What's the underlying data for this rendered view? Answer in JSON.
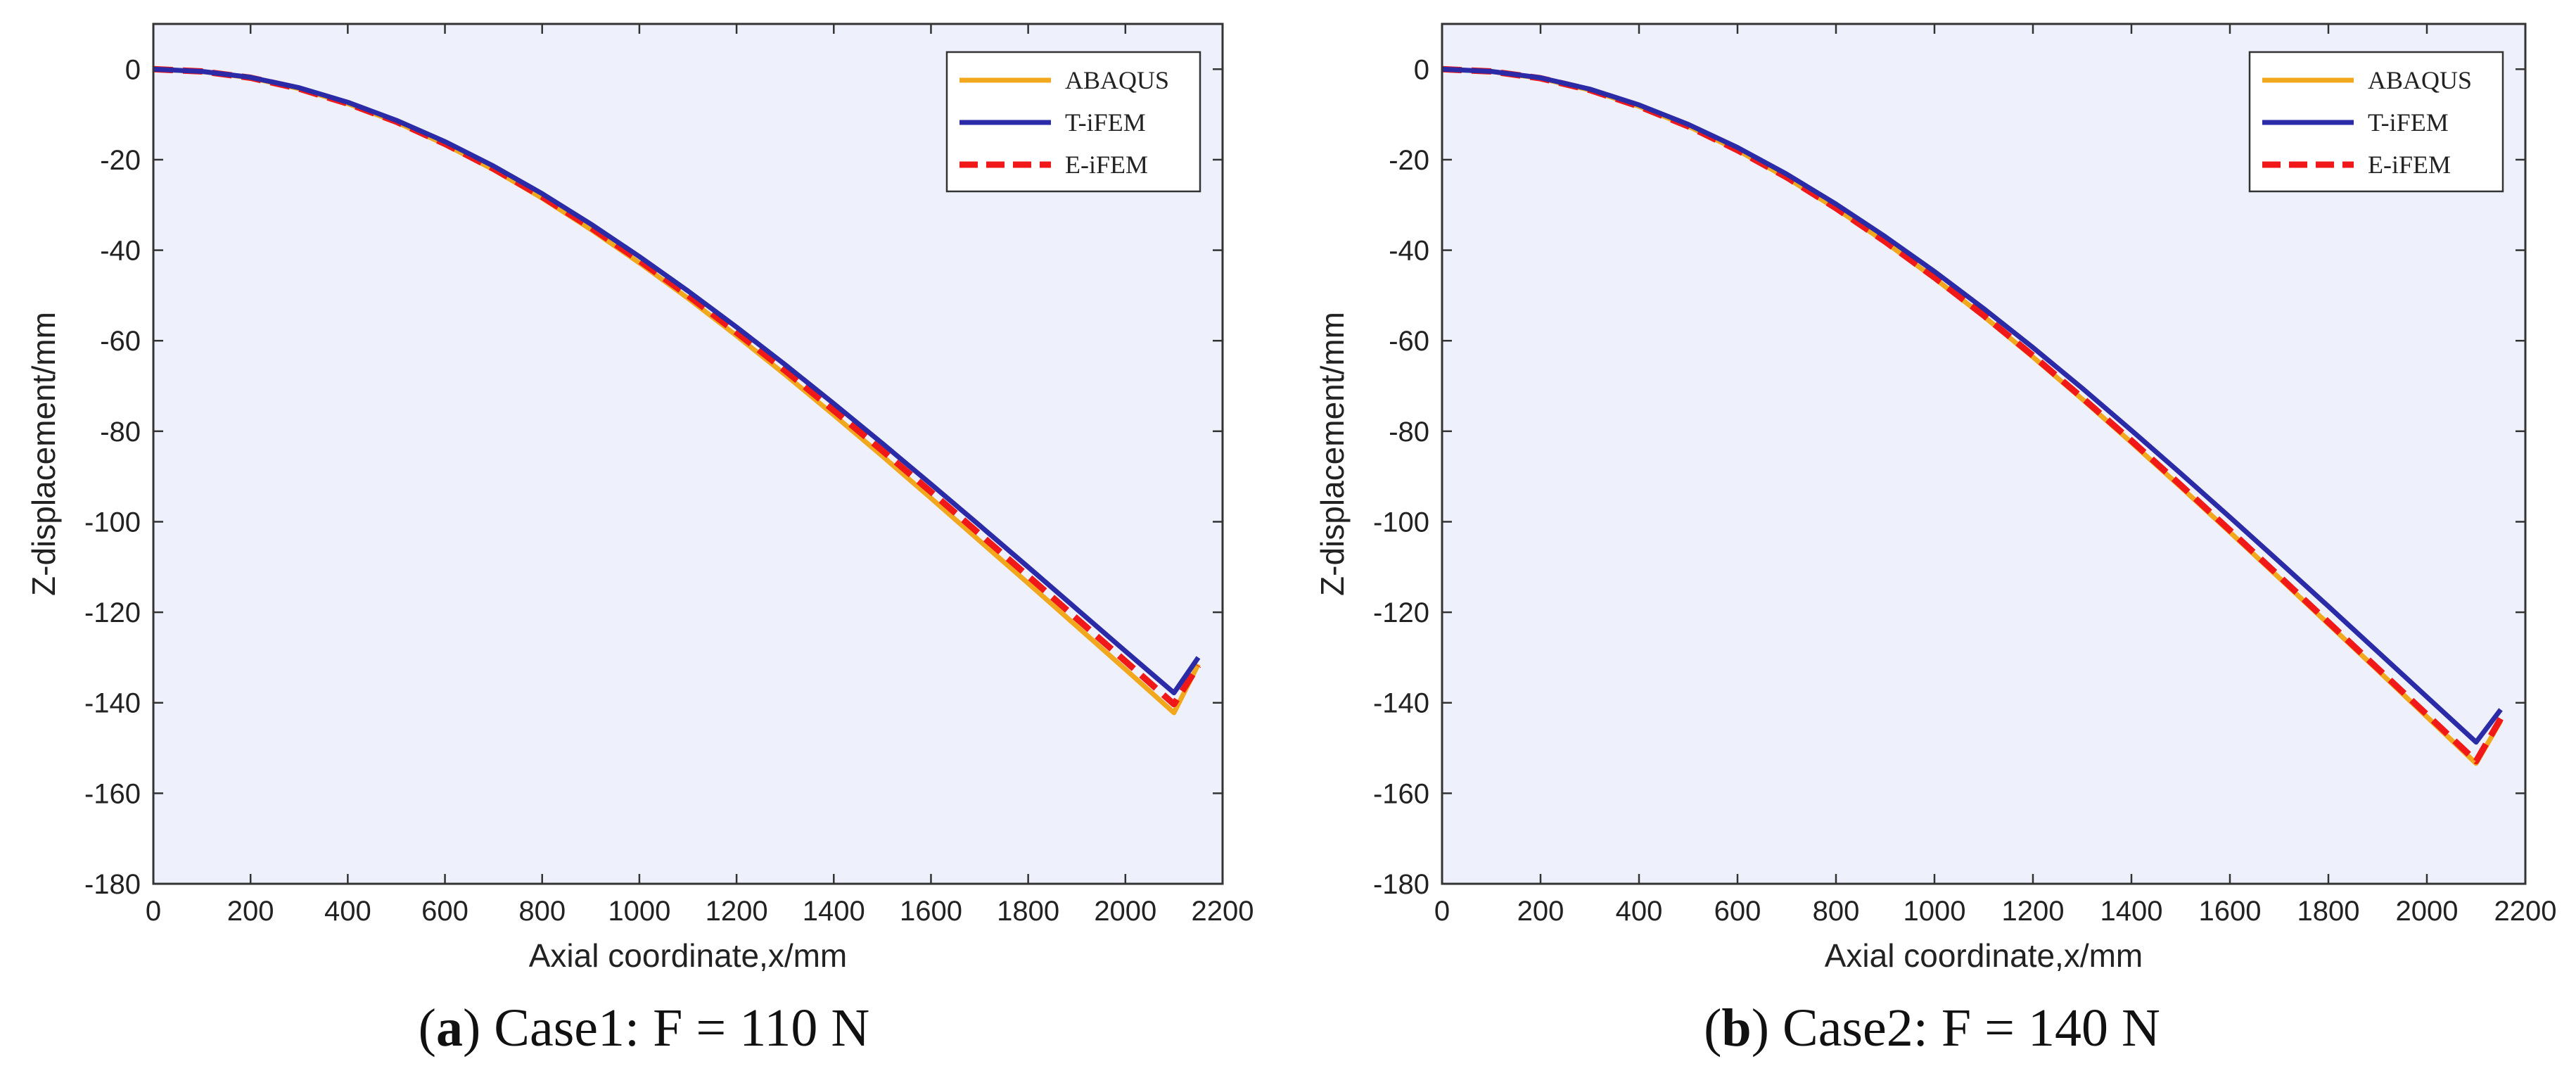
{
  "colors": {
    "plot_bg": "#eef1fb",
    "abaqus": "#f2a81d",
    "tifem": "#2b2ba8",
    "eifem": "#f01818"
  },
  "chart_data": [
    {
      "type": "line",
      "panel": "a",
      "caption_letter": "a",
      "caption_text": ") Case1: F = 110 N",
      "xlabel": "Axial coordinate,x/mm",
      "ylabel": "Z-displacement/mm",
      "xlim": [
        0,
        2200
      ],
      "ylim": [
        -180,
        10
      ],
      "xticks": [
        0,
        200,
        400,
        600,
        800,
        1000,
        1200,
        1400,
        1600,
        1800,
        2000,
        2200
      ],
      "yticks": [
        0,
        -20,
        -40,
        -60,
        -80,
        -100,
        -120,
        -140,
        -160,
        -180
      ],
      "grid": false,
      "legend_position": "top-right",
      "series": [
        {
          "name": "ABAQUS",
          "color_key": "abaqus",
          "style": "solid",
          "x": [
            0,
            100,
            200,
            300,
            400,
            500,
            600,
            700,
            800,
            900,
            1000,
            1100,
            1200,
            1300,
            1400,
            1500,
            1600,
            1700,
            1800,
            1900,
            2000,
            2100,
            2150
          ],
          "y": [
            0,
            -0.5,
            -1.9,
            -4.3,
            -7.6,
            -11.7,
            -16.6,
            -22.2,
            -28.5,
            -35.4,
            -42.8,
            -50.6,
            -58.9,
            -67.5,
            -76.4,
            -85.5,
            -94.8,
            -104.2,
            -113.6,
            -123.1,
            -132.6,
            -142.2,
            -131.5
          ]
        },
        {
          "name": "T-iFEM",
          "color_key": "tifem",
          "style": "solid",
          "x": [
            0,
            100,
            200,
            300,
            400,
            500,
            600,
            700,
            800,
            900,
            1000,
            1100,
            1200,
            1300,
            1400,
            1500,
            1600,
            1700,
            1800,
            1900,
            2000,
            2100,
            2150
          ],
          "y": [
            0,
            -0.5,
            -1.8,
            -4.1,
            -7.3,
            -11.3,
            -16.0,
            -21.4,
            -27.5,
            -34.2,
            -41.4,
            -49.0,
            -57.0,
            -65.3,
            -73.9,
            -82.7,
            -91.7,
            -100.8,
            -110.0,
            -119.3,
            -128.6,
            -137.8,
            -130.0
          ]
        },
        {
          "name": "E-iFEM",
          "color_key": "eifem",
          "style": "dashed",
          "x": [
            0,
            100,
            200,
            300,
            400,
            500,
            600,
            700,
            800,
            900,
            1000,
            1100,
            1200,
            1300,
            1400,
            1500,
            1600,
            1700,
            1800,
            1900,
            2000,
            2100,
            2150
          ],
          "y": [
            0,
            -0.5,
            -1.9,
            -4.3,
            -7.6,
            -11.6,
            -16.5,
            -22.0,
            -28.2,
            -35.0,
            -42.3,
            -50.0,
            -58.2,
            -66.6,
            -75.4,
            -84.3,
            -93.4,
            -102.7,
            -112.0,
            -121.4,
            -130.8,
            -140.3,
            -131.8
          ]
        }
      ]
    },
    {
      "type": "line",
      "panel": "b",
      "caption_letter": "b",
      "caption_text": ") Case2: F = 140 N",
      "xlabel": "Axial coordinate,x/mm",
      "ylabel": "Z-displacement/mm",
      "xlim": [
        0,
        2200
      ],
      "ylim": [
        -180,
        10
      ],
      "xticks": [
        0,
        200,
        400,
        600,
        800,
        1000,
        1200,
        1400,
        1600,
        1800,
        2000,
        2200
      ],
      "yticks": [
        0,
        -20,
        -40,
        -60,
        -80,
        -100,
        -120,
        -140,
        -160,
        -180
      ],
      "grid": false,
      "legend_position": "top-right",
      "series": [
        {
          "name": "ABAQUS",
          "color_key": "abaqus",
          "style": "solid",
          "x": [
            0,
            100,
            200,
            300,
            400,
            500,
            600,
            700,
            800,
            900,
            1000,
            1100,
            1200,
            1300,
            1400,
            1500,
            1600,
            1700,
            1800,
            1900,
            2000,
            2100,
            2150
          ],
          "y": [
            0,
            -0.5,
            -2.0,
            -4.6,
            -8.2,
            -12.6,
            -17.9,
            -24.0,
            -30.8,
            -38.2,
            -46.2,
            -54.6,
            -63.6,
            -72.9,
            -82.5,
            -92.3,
            -102.3,
            -112.4,
            -122.6,
            -132.8,
            -143.1,
            -153.4,
            -144.0
          ]
        },
        {
          "name": "T-iFEM",
          "color_key": "tifem",
          "style": "solid",
          "x": [
            0,
            100,
            200,
            300,
            400,
            500,
            600,
            700,
            800,
            900,
            1000,
            1100,
            1200,
            1300,
            1400,
            1500,
            1600,
            1700,
            1800,
            1900,
            2000,
            2100,
            2150
          ],
          "y": [
            0,
            -0.5,
            -1.9,
            -4.4,
            -7.9,
            -12.2,
            -17.3,
            -23.2,
            -29.8,
            -37.0,
            -44.7,
            -52.9,
            -61.5,
            -70.5,
            -79.8,
            -89.3,
            -99.0,
            -108.8,
            -118.7,
            -128.7,
            -138.7,
            -148.7,
            -141.5
          ]
        },
        {
          "name": "E-iFEM",
          "color_key": "eifem",
          "style": "dashed",
          "x": [
            0,
            100,
            200,
            300,
            400,
            500,
            600,
            700,
            800,
            900,
            1000,
            1100,
            1200,
            1300,
            1400,
            1500,
            1600,
            1700,
            1800,
            1900,
            2000,
            2100,
            2150
          ],
          "y": [
            0,
            -0.5,
            -2.0,
            -4.6,
            -8.2,
            -12.6,
            -17.9,
            -23.9,
            -30.7,
            -38.1,
            -46.0,
            -54.4,
            -63.3,
            -72.6,
            -82.1,
            -91.9,
            -101.9,
            -112.0,
            -122.2,
            -132.4,
            -142.6,
            -152.9,
            -143.5
          ]
        }
      ]
    }
  ]
}
